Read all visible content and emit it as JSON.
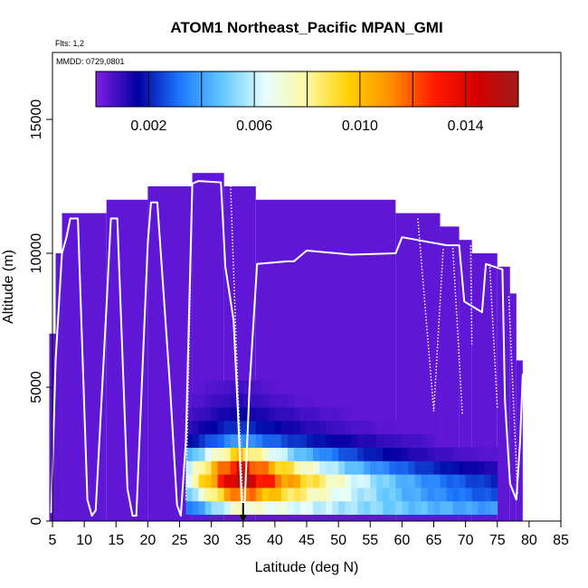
{
  "chart_data": {
    "type": "heatmap",
    "title": "ATOM1 Northeast_Pacific MPAN_GMI",
    "flights_label": "Flts: 1,2",
    "date_label": "MMDD: 0729,0801",
    "xlabel": "Latitude (deg N)",
    "ylabel": "Altitude (m)",
    "xlim": [
      5,
      85
    ],
    "ylim": [
      0,
      17500
    ],
    "x_ticks": [
      5,
      10,
      15,
      20,
      25,
      30,
      35,
      40,
      45,
      50,
      55,
      60,
      65,
      70,
      75,
      80,
      85
    ],
    "y_ticks": [
      0,
      5000,
      10000,
      15000
    ],
    "colorbar": {
      "range": [
        0,
        0.016
      ],
      "ticks": [
        "0.002",
        "0.006",
        "0.010",
        "0.014"
      ],
      "tick_values": [
        0.002,
        0.006,
        0.01,
        0.014
      ],
      "boundaries": [
        0.002,
        0.004,
        0.006,
        0.008,
        0.01,
        0.012,
        0.014,
        0.016
      ],
      "stops": [
        "#7f1fe6",
        "#0000a0",
        "#1e78ff",
        "#64c8ff",
        "#e6ffff",
        "#fff8a0",
        "#ffd000",
        "#ff8c00",
        "#ff1a00",
        "#d40000",
        "#a01a1a"
      ]
    },
    "cell_size": {
      "lat": 1,
      "alt": 500
    },
    "background_value": 0.0004,
    "altitude_envelope": [
      {
        "from": 4.5,
        "to": 5.5,
        "top": 7000
      },
      {
        "from": 5.5,
        "to": 6.5,
        "top": 10000
      },
      {
        "from": 6.5,
        "to": 13.5,
        "top": 11500
      },
      {
        "from": 13.5,
        "to": 20,
        "top": 12000
      },
      {
        "from": 20,
        "to": 27,
        "top": 12500
      },
      {
        "from": 27,
        "to": 32,
        "top": 13000
      },
      {
        "from": 32,
        "to": 37,
        "top": 12500
      },
      {
        "from": 37,
        "to": 59,
        "top": 12000
      },
      {
        "from": 59,
        "to": 66,
        "top": 11500
      },
      {
        "from": 66,
        "to": 69,
        "top": 11000
      },
      {
        "from": 69,
        "to": 71,
        "top": 10500
      },
      {
        "from": 71,
        "to": 75,
        "top": 10000
      },
      {
        "from": 75,
        "to": 77,
        "top": 9500
      },
      {
        "from": 77,
        "to": 78,
        "top": 8500
      },
      {
        "from": 78,
        "to": 79,
        "top": 6000
      }
    ],
    "plume": {
      "start_lat": 26,
      "end_lat": 75,
      "layers": [
        {
          "alt": 500,
          "peak": 0.0074,
          "decay": 60
        },
        {
          "alt": 1000,
          "peak": 0.012,
          "decay": 26
        },
        {
          "alt": 1500,
          "peak": 0.0158,
          "decay": 20
        },
        {
          "alt": 2000,
          "peak": 0.0142,
          "decay": 16
        },
        {
          "alt": 2500,
          "peak": 0.0098,
          "decay": 13
        },
        {
          "alt": 3000,
          "peak": 0.004,
          "decay": 16
        },
        {
          "alt": 3500,
          "peak": 0.0024,
          "decay": 14
        },
        {
          "alt": 4000,
          "peak": 0.0016,
          "decay": 14
        },
        {
          "alt": 4500,
          "peak": 0.0011,
          "decay": 12
        },
        {
          "alt": 5000,
          "peak": 0.0008,
          "decay": 10
        }
      ]
    },
    "flight_track": [
      [
        4.8,
        300
      ],
      [
        5.5,
        6000
      ],
      [
        6.5,
        10000
      ],
      [
        7.2,
        10600
      ],
      [
        7.8,
        11300
      ],
      [
        9,
        11300
      ],
      [
        10.5,
        800
      ],
      [
        11.2,
        200
      ],
      [
        11.8,
        400
      ],
      [
        13.5,
        8000
      ],
      [
        14.2,
        11300
      ],
      [
        15.2,
        11300
      ],
      [
        16.8,
        1200
      ],
      [
        17.6,
        200
      ],
      [
        18.2,
        200
      ],
      [
        20,
        10400
      ],
      [
        20.5,
        11900
      ],
      [
        21.5,
        11900
      ],
      [
        23.5,
        5000
      ],
      [
        24.6,
        600
      ],
      [
        25.2,
        200
      ],
      [
        26,
        3000
      ],
      [
        27,
        12600
      ],
      [
        28,
        12700
      ],
      [
        31.5,
        12650
      ],
      [
        32.2,
        9500
      ],
      [
        33.5,
        7500
      ],
      [
        34.2,
        4000
      ],
      [
        34.8,
        600
      ],
      [
        35.2,
        400
      ],
      [
        36,
        5000
      ],
      [
        37.2,
        9600
      ],
      [
        42,
        9700
      ],
      [
        43,
        9700
      ],
      [
        45,
        10100
      ],
      [
        52,
        9950
      ],
      [
        59,
        10000
      ],
      [
        60,
        10600
      ],
      [
        67,
        10300
      ],
      [
        69,
        10300
      ],
      [
        69.8,
        8200
      ],
      [
        72.6,
        7800
      ],
      [
        73.2,
        9600
      ],
      [
        75.8,
        9400
      ],
      [
        76.2,
        4500
      ],
      [
        77,
        1400
      ],
      [
        78,
        800
      ],
      [
        78.6,
        3000
      ],
      [
        79,
        5500
      ]
    ],
    "dotted_segments": [
      [
        [
          26,
          800
        ],
        [
          27,
          12600
        ]
      ],
      [
        [
          33,
          12650
        ],
        [
          34.2,
          4800
        ],
        [
          35,
          400
        ]
      ],
      [
        [
          62.5,
          11300
        ],
        [
          65,
          4100
        ],
        [
          66.5,
          10200
        ]
      ],
      [
        [
          68,
          10200
        ],
        [
          69.5,
          4000
        ]
      ],
      [
        [
          70.8,
          10300
        ],
        [
          71,
          6600
        ]
      ],
      [
        [
          73.8,
          9600
        ],
        [
          75,
          4200
        ]
      ],
      [
        [
          76.8,
          8400
        ],
        [
          78.2,
          1000
        ]
      ]
    ],
    "marker": {
      "lat": 35,
      "alt": 500,
      "direction": "down"
    }
  }
}
